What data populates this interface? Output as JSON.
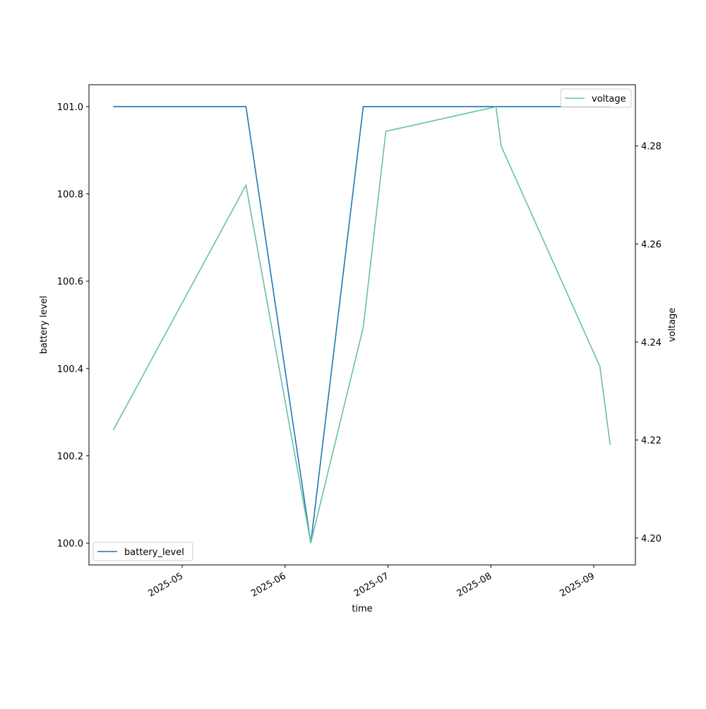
{
  "chart_data": {
    "type": "line",
    "xlabel": "time",
    "ylabel": "battery level",
    "y2label": "voltage",
    "x": [
      4.33,
      5.62,
      6.25,
      6.76,
      6.98,
      8.05,
      8.1,
      9.06,
      9.16
    ],
    "xlim": [
      4.094,
      9.405
    ],
    "xticks": [
      {
        "value": 5,
        "label": "2025-05"
      },
      {
        "value": 6,
        "label": "2025-06"
      },
      {
        "value": 7,
        "label": "2025-07"
      },
      {
        "value": 8,
        "label": "2025-08"
      },
      {
        "value": 9,
        "label": "2025-09"
      }
    ],
    "ylim": [
      99.95,
      101.05
    ],
    "yticks": [
      {
        "value": 100,
        "label": "100.0"
      },
      100.2,
      100.4,
      100.6,
      100.8,
      {
        "value": 101,
        "label": "101.0"
      }
    ],
    "y2lim": [
      4.1945,
      4.2925
    ],
    "y2ticks": [
      {
        "value": 4.2,
        "label": "4.20"
      },
      4.22,
      4.24,
      4.26,
      4.28
    ],
    "series": [
      {
        "name": "battery_level",
        "color": "#1f77b4",
        "values": [
          101,
          101,
          100,
          101,
          101,
          101,
          101,
          101,
          101
        ],
        "legend": "lower left"
      },
      {
        "name": "voltage",
        "color": "#66c2a5",
        "axis": "y2",
        "values": [
          4.222,
          4.272,
          4.199,
          4.243,
          4.283,
          4.288,
          4.28,
          4.235,
          4.219
        ],
        "legend": "upper right"
      }
    ]
  }
}
